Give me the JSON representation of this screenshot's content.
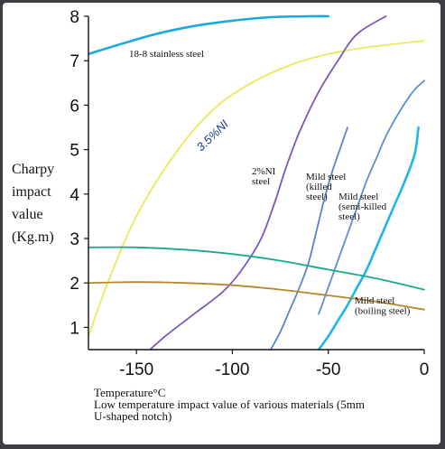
{
  "chart_data": {
    "type": "line",
    "ylabel_lines": [
      "Charpy",
      "impact",
      "value",
      "(Kg.m)"
    ],
    "xlabel": "Temperature°C",
    "caption_lines": [
      "Low temperature impact value of various materials (5mm",
      "U-shaped notch)"
    ],
    "xlim": [
      -175,
      0
    ],
    "ylim": [
      0.5,
      8
    ],
    "xticks": [
      -150,
      -100,
      -50,
      0
    ],
    "yticks": [
      1,
      2,
      3,
      4,
      5,
      6,
      7,
      8
    ],
    "grid": false,
    "series": [
      {
        "name": "18-8 stainless steel",
        "label_lines": [
          "18-8 stainless steel"
        ],
        "color": "#1aa8e0",
        "x": [
          -175,
          -160,
          -140,
          -120,
          -100,
          -80,
          -60,
          -50
        ],
        "y": [
          7.15,
          7.35,
          7.6,
          7.78,
          7.9,
          7.98,
          8.0,
          8.0
        ]
      },
      {
        "name": "3.5%Ni",
        "label_lines": [
          "3.5%NI"
        ],
        "color": "#e8ea5a",
        "x": [
          -175,
          -165,
          -150,
          -130,
          -110,
          -90,
          -70,
          -50,
          -30,
          0
        ],
        "y": [
          0.8,
          2.0,
          3.5,
          4.9,
          5.9,
          6.5,
          6.9,
          7.15,
          7.3,
          7.45
        ]
      },
      {
        "name": "2%Ni steel",
        "label_lines": [
          "2%NI",
          "steel"
        ],
        "color": "#7d58b8",
        "x": [
          -148,
          -135,
          -120,
          -105,
          -95,
          -85,
          -78,
          -72,
          -65,
          -55,
          -45,
          -35,
          -20
        ],
        "y": [
          0.3,
          0.8,
          1.3,
          1.8,
          2.3,
          3.0,
          3.8,
          4.6,
          5.4,
          6.3,
          7.0,
          7.6,
          8.0
        ]
      },
      {
        "name": "Mild steel (killed steel)",
        "label_lines": [
          "Mild steel",
          "(killed",
          "steel)"
        ],
        "color": "#5b84c8",
        "x": [
          -80,
          -75,
          -70,
          -65,
          -60,
          -56,
          -52,
          -48,
          -44,
          -40
        ],
        "y": [
          0.5,
          0.9,
          1.4,
          1.9,
          2.5,
          3.2,
          3.9,
          4.5,
          5.0,
          5.5
        ]
      },
      {
        "name": "Mild steel (semi-killed steel)",
        "label_lines": [
          "Mild steel",
          "(semi-killed",
          "steel)"
        ],
        "color": "#5b90cc",
        "x": [
          -55,
          -50,
          -45,
          -40,
          -35,
          -30,
          -25,
          -20,
          -15,
          -10,
          -5,
          0
        ],
        "y": [
          1.3,
          1.9,
          2.5,
          3.1,
          3.7,
          4.3,
          4.8,
          5.3,
          5.7,
          6.05,
          6.35,
          6.55
        ]
      },
      {
        "name": "Mild steel (boiling steel)",
        "label_lines": [
          "Mild steel",
          "(boiling steel)"
        ],
        "color": "#1fb4ec",
        "x": [
          -55,
          -50,
          -45,
          -40,
          -35,
          -30,
          -25,
          -20,
          -15,
          -10,
          -5,
          -3
        ],
        "y": [
          0.5,
          0.8,
          1.15,
          1.5,
          1.9,
          2.3,
          2.8,
          3.3,
          3.8,
          4.3,
          4.9,
          5.5
        ]
      },
      {
        "name": "teal curve",
        "label_lines": [],
        "color": "#18a98f",
        "x": [
          -175,
          -150,
          -125,
          -100,
          -75,
          -50,
          -25,
          0
        ],
        "y": [
          2.8,
          2.8,
          2.75,
          2.65,
          2.5,
          2.3,
          2.1,
          1.85
        ]
      },
      {
        "name": "brown curve",
        "label_lines": [],
        "color": "#b8862e",
        "x": [
          -175,
          -150,
          -125,
          -100,
          -75,
          -50,
          -25,
          0
        ],
        "y": [
          2.0,
          2.02,
          2.0,
          1.95,
          1.85,
          1.72,
          1.58,
          1.4
        ]
      }
    ]
  }
}
